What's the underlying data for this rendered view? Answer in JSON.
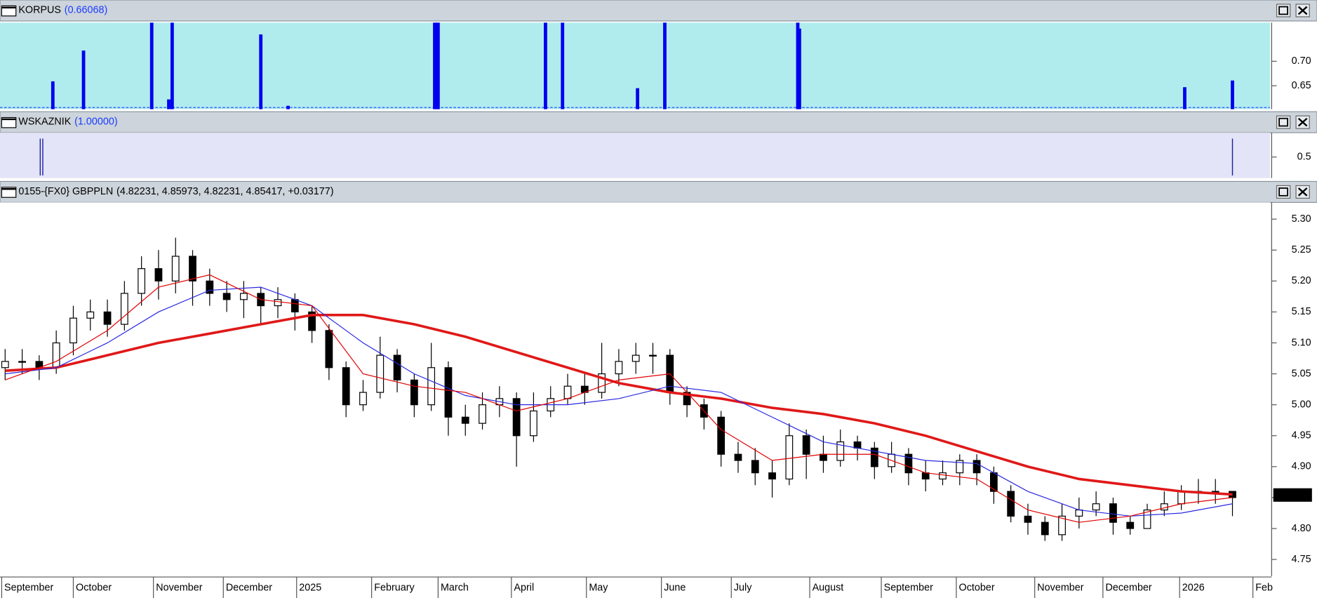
{
  "chart_data": [
    {
      "type": "spike-bar",
      "title": "KORPUS",
      "title_value": "(0.66068)",
      "color": "#0000ee",
      "background": "#b0ecee",
      "xlim": [
        -0.3,
        74.2
      ],
      "ylim": [
        0.602,
        0.779
      ],
      "yticks": [
        {
          "value": 0.7,
          "label": "0.70"
        },
        0.65
      ],
      "x": [
        2.8,
        4.6,
        8.6,
        9.6,
        9.8,
        15.0,
        16.6,
        25.2,
        25.3,
        25.4,
        31.7,
        32.7,
        37.1,
        38.7,
        46.5,
        46.6,
        69.2,
        72.0
      ],
      "values": [
        0.659,
        0.722,
        0.779,
        0.622,
        0.779,
        0.755,
        0.609,
        0.779,
        0.779,
        0.779,
        0.779,
        0.779,
        0.645,
        0.779,
        0.779,
        0.767,
        0.647,
        0.66068
      ]
    },
    {
      "type": "spike-line",
      "title": "WSKAZNIK",
      "title_value": "(1.00000)",
      "color": "#2020a0",
      "background": "#e4e4f8",
      "xlim": [
        -0.3,
        74.2
      ],
      "ylim": [
        -0.07,
        1.16
      ],
      "yticks": [
        0.5
      ],
      "x": [
        2.06,
        2.21,
        72.0
      ],
      "values": [
        1,
        1,
        1
      ]
    },
    {
      "type": "candlestick",
      "title": "0155-{FX0} GBPPLN",
      "title_value": "(4.82231, 4.85973, 4.82231, 4.85417, +0.03177)",
      "background": "#ffffff",
      "xlim": [
        -0.3,
        74.2
      ],
      "ylim": [
        4.723,
        5.327
      ],
      "yticks": [
        4.75,
        {
          "value": 4.8,
          "label": "4.80"
        },
        4.85,
        {
          "value": 4.9,
          "label": "4.90"
        },
        4.95,
        {
          "value": 5.0,
          "label": "5.00"
        },
        5.05,
        {
          "value": 5.1,
          "label": "5.10"
        },
        5.15,
        {
          "value": 5.2,
          "label": "5.20"
        },
        5.25,
        {
          "value": 5.3,
          "label": "5.30"
        }
      ],
      "xticks": [
        {
          "value": -0.2,
          "label": "September"
        },
        {
          "value": 4.0,
          "label": "October"
        },
        {
          "value": 8.7,
          "label": "November"
        },
        {
          "value": 12.8,
          "label": "December"
        },
        {
          "value": 17.1,
          "label": "2025"
        },
        {
          "value": 21.5,
          "label": "February"
        },
        {
          "value": 25.4,
          "label": "March"
        },
        {
          "value": 29.7,
          "label": "April"
        },
        {
          "value": 34.1,
          "label": "May"
        },
        {
          "value": 38.5,
          "label": "June"
        },
        {
          "value": 42.6,
          "label": "July"
        },
        {
          "value": 47.2,
          "label": "August"
        },
        {
          "value": 51.4,
          "label": "September"
        },
        {
          "value": 55.8,
          "label": "October"
        },
        {
          "value": 60.4,
          "label": "November"
        },
        {
          "value": 64.4,
          "label": "December"
        },
        {
          "value": 68.9,
          "label": "2026"
        },
        {
          "value": 73.2,
          "label": "Feb"
        }
      ],
      "last_price": {
        "value": 4.85417,
        "label": "4.85417"
      },
      "candles": {
        "open": [
          5.06,
          5.07,
          5.07,
          5.06,
          5.1,
          5.14,
          5.15,
          5.13,
          5.18,
          5.22,
          5.2,
          5.24,
          5.2,
          5.18,
          5.17,
          5.18,
          5.16,
          5.17,
          5.15,
          5.12,
          5.06,
          5.0,
          5.02,
          5.08,
          5.04,
          5.0,
          5.06,
          4.98,
          4.97,
          5.0,
          5.01,
          4.95,
          4.99,
          5.01,
          5.03,
          5.02,
          5.05,
          5.07,
          5.08,
          5.08,
          5.02,
          5.0,
          4.98,
          4.92,
          4.91,
          4.89,
          4.88,
          4.95,
          4.92,
          4.91,
          4.94,
          4.93,
          4.9,
          4.92,
          4.89,
          4.88,
          4.89,
          4.91,
          4.89,
          4.86,
          4.82,
          4.81,
          4.79,
          4.82,
          4.83,
          4.84,
          4.81,
          4.8,
          4.83,
          4.84,
          4.86,
          4.86,
          4.86
        ],
        "high": [
          5.09,
          5.09,
          5.08,
          5.12,
          5.16,
          5.17,
          5.17,
          5.2,
          5.24,
          5.25,
          5.27,
          5.25,
          5.22,
          5.2,
          5.2,
          5.19,
          5.19,
          5.18,
          5.16,
          5.13,
          5.07,
          5.04,
          5.11,
          5.09,
          5.05,
          5.1,
          5.07,
          5.0,
          5.02,
          5.03,
          5.02,
          5.02,
          5.03,
          5.05,
          5.05,
          5.1,
          5.09,
          5.1,
          5.1,
          5.09,
          5.03,
          5.01,
          4.99,
          4.94,
          4.93,
          4.91,
          4.97,
          4.96,
          4.95,
          4.96,
          4.95,
          4.94,
          4.94,
          4.93,
          4.91,
          4.91,
          4.92,
          4.92,
          4.9,
          4.87,
          4.84,
          4.82,
          4.84,
          4.85,
          4.86,
          4.85,
          4.82,
          4.84,
          4.86,
          4.87,
          4.88,
          4.88,
          4.86
        ],
        "low": [
          5.04,
          5.05,
          5.04,
          5.05,
          5.08,
          5.12,
          5.11,
          5.12,
          5.16,
          5.17,
          5.18,
          5.16,
          5.16,
          5.15,
          5.14,
          5.13,
          5.14,
          5.12,
          5.1,
          5.04,
          4.98,
          4.99,
          5.01,
          5.02,
          4.98,
          4.99,
          4.95,
          4.95,
          4.96,
          4.98,
          4.9,
          4.94,
          4.98,
          5.0,
          5.0,
          5.01,
          5.03,
          5.05,
          5.05,
          5.0,
          4.98,
          4.96,
          4.9,
          4.89,
          4.87,
          4.85,
          4.87,
          4.88,
          4.89,
          4.9,
          4.91,
          4.88,
          4.89,
          4.87,
          4.86,
          4.87,
          4.87,
          4.87,
          4.84,
          4.81,
          4.79,
          4.78,
          4.78,
          4.8,
          4.82,
          4.79,
          4.79,
          4.8,
          4.82,
          4.83,
          4.84,
          4.84,
          4.82
        ],
        "close": [
          5.07,
          5.07,
          5.06,
          5.1,
          5.14,
          5.15,
          5.13,
          5.18,
          5.22,
          5.2,
          5.24,
          5.2,
          5.18,
          5.17,
          5.18,
          5.16,
          5.17,
          5.15,
          5.12,
          5.06,
          5.0,
          5.02,
          5.08,
          5.04,
          5.0,
          5.06,
          4.98,
          4.97,
          5.0,
          5.01,
          4.95,
          4.99,
          5.01,
          5.03,
          5.02,
          5.05,
          5.07,
          5.08,
          5.08,
          5.02,
          5.0,
          4.98,
          4.92,
          4.91,
          4.89,
          4.88,
          4.95,
          4.92,
          4.91,
          4.94,
          4.93,
          4.9,
          4.92,
          4.89,
          4.88,
          4.89,
          4.91,
          4.89,
          4.86,
          4.82,
          4.81,
          4.79,
          4.82,
          4.83,
          4.84,
          4.81,
          4.8,
          4.83,
          4.84,
          4.86,
          4.86,
          4.86,
          4.85
        ]
      },
      "series": [
        {
          "color": "#e01818",
          "width": 3,
          "x": [
            0,
            3,
            6,
            9,
            12,
            15,
            18,
            21,
            24,
            27,
            30,
            33,
            36,
            39,
            42,
            45,
            48,
            51,
            54,
            57,
            60,
            63,
            66,
            69,
            72
          ],
          "values": [
            5.055,
            5.06,
            5.08,
            5.1,
            5.115,
            5.13,
            5.145,
            5.145,
            5.13,
            5.11,
            5.085,
            5.06,
            5.035,
            5.02,
            5.01,
            4.995,
            4.985,
            4.97,
            4.95,
            4.925,
            4.9,
            4.88,
            4.87,
            4.86,
            4.855
          ]
        },
        {
          "color": "#2828e0",
          "width": 1,
          "x": [
            0,
            3,
            6,
            9,
            12,
            15,
            18,
            21,
            24,
            27,
            30,
            33,
            36,
            39,
            42,
            45,
            48,
            51,
            54,
            57,
            60,
            63,
            66,
            69,
            72
          ],
          "values": [
            5.05,
            5.06,
            5.1,
            5.15,
            5.185,
            5.19,
            5.16,
            5.1,
            5.05,
            5.015,
            5.0,
            5.0,
            5.01,
            5.03,
            5.02,
            4.98,
            4.94,
            4.925,
            4.91,
            4.905,
            4.86,
            4.83,
            4.82,
            4.825,
            4.84
          ]
        },
        {
          "color": "#e00000",
          "width": 1,
          "x": [
            0,
            3,
            6,
            9,
            12,
            15,
            18,
            21,
            24,
            27,
            30,
            33,
            36,
            39,
            42,
            45,
            48,
            51,
            54,
            57,
            60,
            63,
            66,
            69,
            72
          ],
          "values": [
            5.04,
            5.07,
            5.12,
            5.19,
            5.21,
            5.17,
            5.16,
            5.05,
            5.03,
            5.02,
            4.99,
            5.01,
            5.04,
            5.05,
            4.96,
            4.91,
            4.92,
            4.92,
            4.89,
            4.88,
            4.83,
            4.81,
            4.82,
            4.84,
            4.85
          ]
        }
      ]
    }
  ]
}
